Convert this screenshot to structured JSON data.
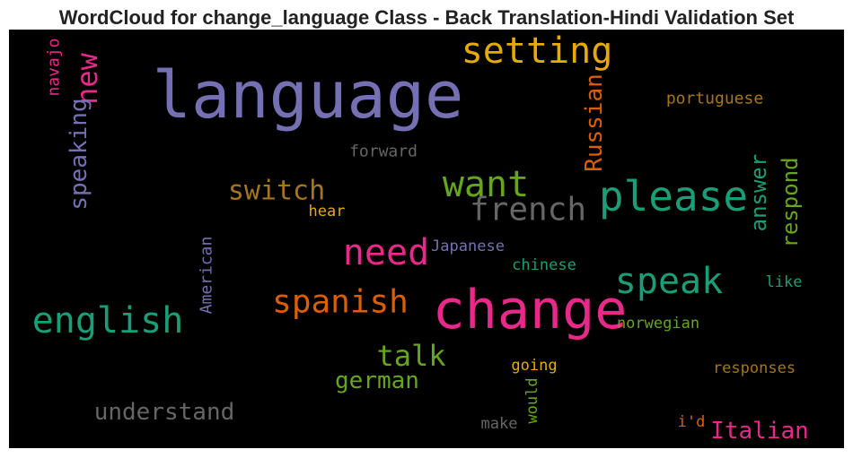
{
  "chart_data": {
    "type": "wordcloud",
    "title": "WordCloud for change_language Class - Back Translation-Hindi Validation Set",
    "background": "#000000",
    "words": [
      {
        "text": "language",
        "color": "#7570b3"
      },
      {
        "text": "change",
        "color": "#e7298a"
      },
      {
        "text": "setting",
        "color": "#e6ab02"
      },
      {
        "text": "please",
        "color": "#1b9e77"
      },
      {
        "text": "want",
        "color": "#66a61e"
      },
      {
        "text": "french",
        "color": "#666666"
      },
      {
        "text": "switch",
        "color": "#a6761d"
      },
      {
        "text": "need",
        "color": "#e7298a"
      },
      {
        "text": "speak",
        "color": "#1b9e77"
      },
      {
        "text": "spanish",
        "color": "#d95f02"
      },
      {
        "text": "english",
        "color": "#1b9e77"
      },
      {
        "text": "talk",
        "color": "#66a61e"
      },
      {
        "text": "german",
        "color": "#66a61e"
      },
      {
        "text": "understand",
        "color": "#666666"
      },
      {
        "text": "Italian",
        "color": "#e7298a"
      },
      {
        "text": "Russian",
        "color": "#d95f02"
      },
      {
        "text": "new",
        "color": "#e7298a"
      },
      {
        "text": "navajo",
        "color": "#e7298a"
      },
      {
        "text": "speaking",
        "color": "#7570b3"
      },
      {
        "text": "American",
        "color": "#7570b3"
      },
      {
        "text": "answer",
        "color": "#1b9e77"
      },
      {
        "text": "respond",
        "color": "#66a61e"
      },
      {
        "text": "portuguese",
        "color": "#a6761d"
      },
      {
        "text": "forward",
        "color": "#666666"
      },
      {
        "text": "hear",
        "color": "#e6ab02"
      },
      {
        "text": "Japanese",
        "color": "#7570b3"
      },
      {
        "text": "chinese",
        "color": "#1b9e77"
      },
      {
        "text": "like",
        "color": "#1b9e77"
      },
      {
        "text": "norwegian",
        "color": "#66a61e"
      },
      {
        "text": "going",
        "color": "#e6ab02"
      },
      {
        "text": "responses",
        "color": "#a6761d"
      },
      {
        "text": "would",
        "color": "#66a61e"
      },
      {
        "text": "make",
        "color": "#666666"
      },
      {
        "text": "i'd",
        "color": "#d95f02"
      }
    ]
  }
}
